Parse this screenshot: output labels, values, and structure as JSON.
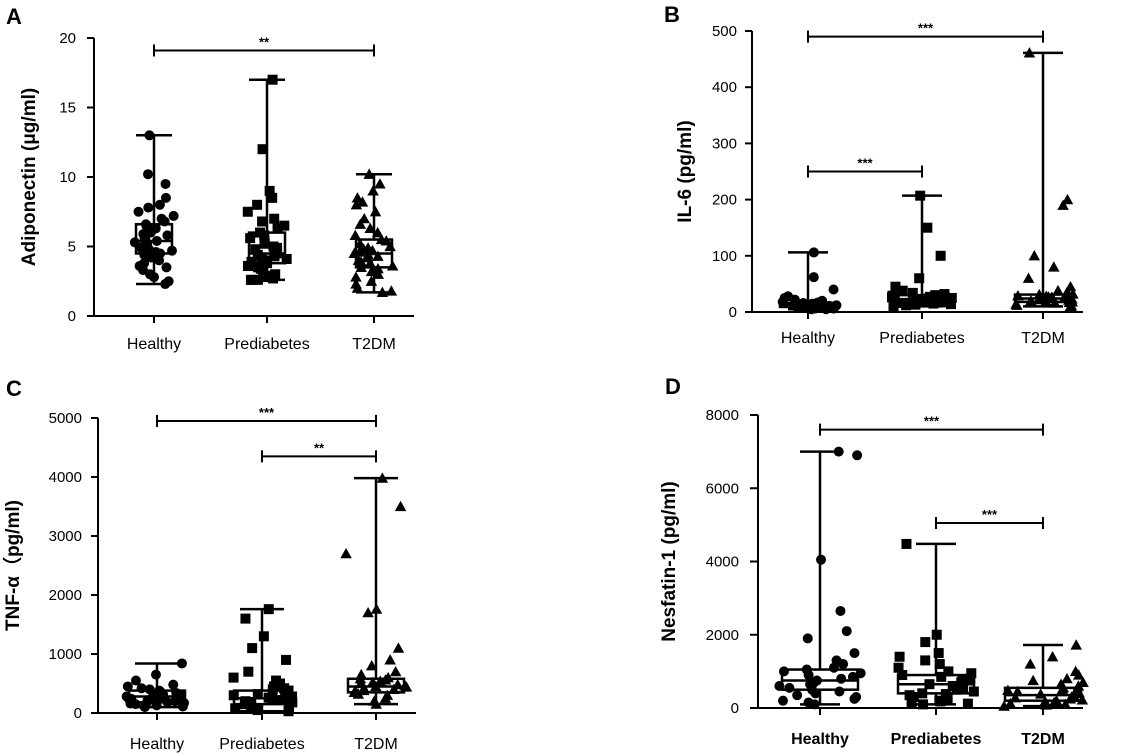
{
  "chart_data": [
    {
      "type": "boxplot",
      "panel": "A",
      "ylabel": "Adiponectin  (μg/ml)",
      "ylim": [
        0,
        20
      ],
      "yticks": [
        0,
        5,
        10,
        15,
        20
      ],
      "categories": [
        "Healthy",
        "Prediabetes",
        "T2DM"
      ],
      "markers": [
        "circle",
        "square",
        "triangle"
      ],
      "boxes": [
        {
          "min": 2.3,
          "q1": 4.5,
          "median": 5.4,
          "q3": 6.6,
          "max": 13.0
        },
        {
          "min": 2.6,
          "q1": 3.8,
          "median": 4.5,
          "q3": 6.0,
          "max": 17.0
        },
        {
          "min": 1.7,
          "q1": 3.5,
          "median": 4.5,
          "q3": 5.5,
          "max": 10.2
        }
      ],
      "points": [
        [
          13.0,
          10.2,
          9.5,
          8.5,
          8.0,
          7.8,
          7.5,
          7.2,
          7.0,
          6.8,
          6.6,
          6.5,
          6.3,
          6.2,
          6.0,
          5.9,
          5.8,
          5.6,
          5.5,
          5.4,
          5.3,
          5.2,
          5.0,
          4.9,
          4.8,
          4.7,
          4.6,
          4.5,
          4.4,
          4.3,
          4.2,
          4.0,
          3.8,
          3.6,
          3.5,
          3.3,
          3.0,
          2.8,
          2.5,
          2.3
        ],
        [
          17.0,
          12.0,
          9.0,
          8.5,
          8.0,
          7.5,
          7.0,
          6.8,
          6.5,
          6.3,
          6.0,
          5.8,
          5.6,
          5.4,
          5.2,
          5.0,
          4.9,
          4.8,
          4.7,
          4.6,
          4.5,
          4.4,
          4.3,
          4.2,
          4.1,
          4.0,
          3.9,
          3.8,
          3.6,
          3.5,
          3.4,
          3.3,
          3.2,
          3.0,
          2.9,
          2.8,
          2.7,
          2.6,
          2.6,
          2.6
        ],
        [
          10.2,
          9.5,
          9.0,
          8.5,
          8.2,
          8.0,
          7.5,
          7.0,
          6.6,
          6.3,
          6.0,
          5.8,
          5.5,
          5.4,
          5.2,
          5.0,
          4.9,
          4.8,
          4.7,
          4.6,
          4.5,
          4.4,
          4.3,
          4.2,
          4.0,
          3.9,
          3.8,
          3.6,
          3.5,
          3.4,
          3.2,
          3.0,
          2.8,
          2.5,
          2.3,
          2.0,
          1.8,
          1.7
        ]
      ],
      "sig": [
        {
          "from": 0,
          "to": 2,
          "y": 19.1,
          "label": "**"
        }
      ]
    },
    {
      "type": "boxplot",
      "panel": "B",
      "ylabel": "IL-6 (pg/ml)",
      "ylim": [
        0,
        500
      ],
      "yticks": [
        0,
        100,
        200,
        300,
        400,
        500
      ],
      "categories": [
        "Healthy",
        "Prediabetes",
        "T2DM"
      ],
      "markers": [
        "circle",
        "square",
        "triangle"
      ],
      "boxes": [
        {
          "min": 5,
          "q1": 9,
          "median": 12,
          "q3": 16,
          "max": 106
        },
        {
          "min": 10,
          "q1": 18,
          "median": 23,
          "q3": 30,
          "max": 207
        },
        {
          "min": 10,
          "q1": 18,
          "median": 24,
          "q3": 31,
          "max": 461
        }
      ],
      "points": [
        [
          106,
          62,
          40,
          28,
          25,
          22,
          20,
          18,
          17,
          16,
          15,
          14,
          13,
          13,
          12,
          12,
          11,
          11,
          10,
          10,
          9,
          9,
          8,
          8,
          7,
          7,
          6,
          6,
          5,
          5
        ],
        [
          207,
          150,
          100,
          60,
          45,
          38,
          34,
          32,
          30,
          29,
          28,
          27,
          26,
          25,
          24,
          23,
          22,
          21,
          20,
          20,
          19,
          18,
          17,
          16,
          15,
          14,
          13,
          12,
          11,
          10
        ],
        [
          461,
          200,
          190,
          100,
          80,
          60,
          45,
          38,
          34,
          32,
          31,
          30,
          29,
          28,
          27,
          26,
          25,
          24,
          23,
          22,
          21,
          20,
          19,
          18,
          17,
          16,
          14,
          12,
          11,
          10
        ]
      ],
      "sig": [
        {
          "from": 0,
          "to": 2,
          "y": 490,
          "label": "***"
        },
        {
          "from": 0,
          "to": 1,
          "y": 250,
          "label": "***"
        }
      ]
    },
    {
      "type": "boxplot",
      "panel": "C",
      "ylabel": "TNF-α（pg/ml)",
      "ylim": [
        0,
        5000
      ],
      "yticks": [
        0,
        1000,
        2000,
        3000,
        4000,
        5000
      ],
      "categories": [
        "Healthy",
        "Prediabetes",
        "T2DM"
      ],
      "markers": [
        "circle",
        "square",
        "triangle"
      ],
      "boxes": [
        {
          "min": 100,
          "q1": 180,
          "median": 280,
          "q3": 380,
          "max": 840
        },
        {
          "min": 30,
          "q1": 150,
          "median": 250,
          "q3": 380,
          "max": 1760
        },
        {
          "min": 150,
          "q1": 350,
          "median": 450,
          "q3": 580,
          "max": 3980
        }
      ],
      "points": [
        [
          840,
          650,
          550,
          480,
          450,
          420,
          400,
          380,
          360,
          340,
          320,
          300,
          290,
          280,
          270,
          260,
          250,
          240,
          230,
          220,
          210,
          200,
          190,
          180,
          170,
          160,
          150,
          130,
          110,
          100
        ],
        [
          1760,
          1600,
          1300,
          1100,
          900,
          700,
          600,
          550,
          500,
          450,
          420,
          400,
          380,
          350,
          320,
          300,
          280,
          260,
          250,
          240,
          220,
          200,
          180,
          160,
          150,
          120,
          100,
          80,
          50,
          30
        ],
        [
          3980,
          3500,
          2700,
          1760,
          1700,
          1100,
          900,
          800,
          700,
          650,
          600,
          580,
          560,
          540,
          520,
          500,
          480,
          460,
          450,
          440,
          420,
          400,
          380,
          360,
          350,
          320,
          300,
          250,
          200,
          150
        ]
      ],
      "sig": [
        {
          "from": 0,
          "to": 2,
          "y": 4950,
          "label": "***"
        },
        {
          "from": 1,
          "to": 2,
          "y": 4350,
          "label": "**"
        }
      ]
    },
    {
      "type": "boxplot",
      "panel": "D",
      "ylabel": "Nesfatin-1 (pg/ml)",
      "ylim": [
        0,
        8000
      ],
      "yticks": [
        0,
        2000,
        4000,
        6000,
        8000
      ],
      "categories": [
        "Healthy",
        "Prediabetes",
        "T2DM"
      ],
      "markers": [
        "circle",
        "square",
        "triangle"
      ],
      "boxes": [
        {
          "min": 100,
          "q1": 500,
          "median": 750,
          "q3": 1050,
          "max": 7000
        },
        {
          "min": 100,
          "q1": 400,
          "median": 650,
          "q3": 900,
          "max": 4480
        },
        {
          "min": 50,
          "q1": 200,
          "median": 350,
          "q3": 550,
          "max": 1720
        }
      ],
      "points": [
        [
          7000,
          6900,
          4050,
          2650,
          2100,
          1900,
          1500,
          1300,
          1200,
          1100,
          1050,
          1000,
          950,
          900,
          850,
          800,
          750,
          700,
          650,
          600,
          550,
          500,
          450,
          400,
          350,
          300,
          250,
          200,
          150,
          100
        ],
        [
          4480,
          2000,
          1800,
          1500,
          1400,
          1300,
          1200,
          1100,
          1000,
          950,
          900,
          850,
          800,
          750,
          700,
          650,
          600,
          550,
          500,
          450,
          400,
          380,
          350,
          300,
          250,
          200,
          180,
          150,
          120,
          100
        ],
        [
          1720,
          1400,
          1200,
          1000,
          900,
          800,
          750,
          700,
          650,
          600,
          550,
          500,
          480,
          450,
          420,
          400,
          380,
          350,
          320,
          300,
          280,
          250,
          220,
          200,
          180,
          150,
          120,
          100,
          80,
          50
        ]
      ],
      "sig": [
        {
          "from": 0,
          "to": 2,
          "y": 7600,
          "label": "***"
        },
        {
          "from": 1,
          "to": 2,
          "y": 5050,
          "label": "***"
        }
      ]
    }
  ]
}
